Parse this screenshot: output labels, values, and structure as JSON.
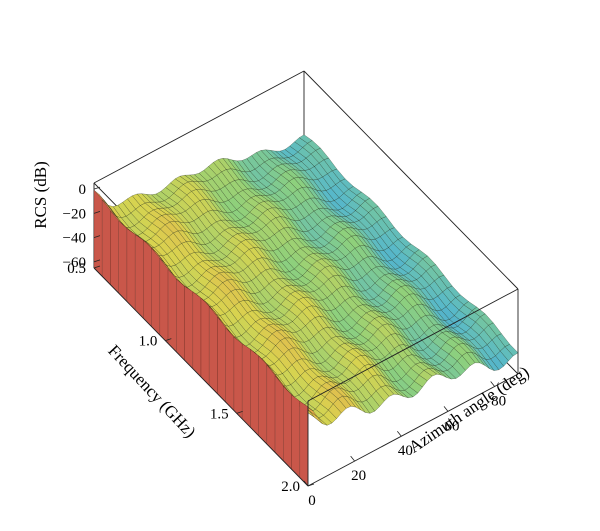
{
  "chart_data": {
    "type": "surface",
    "xlabel": "Azimuth angle (deg)",
    "ylabel": "Frequency (GHz)",
    "zlabel": "RCS (dB)",
    "x_ticks": [
      0,
      20,
      40,
      60,
      80
    ],
    "y_ticks": [
      "0.5",
      "1.0",
      "1.5",
      "2.0"
    ],
    "z_ticks": [
      "0",
      "−20",
      "−40",
      "−60"
    ],
    "xlim": [
      0,
      90
    ],
    "ylim": [
      0.5,
      2.0
    ],
    "zlim": [
      -65,
      5
    ],
    "grid": false,
    "colormap": [
      "#2f7fd0",
      "#58b9c9",
      "#8ed07c",
      "#d8d34f",
      "#e8a84d",
      "#d6564a"
    ],
    "surface_samples": [
      {
        "azimuth": 0,
        "frequency": 0.5,
        "rcs": -3
      },
      {
        "azimuth": 0,
        "frequency": 2.0,
        "rcs": -2
      },
      {
        "azimuth": 10,
        "frequency": 1.0,
        "rcs": -22
      },
      {
        "azimuth": 20,
        "frequency": 1.0,
        "rcs": -20
      },
      {
        "azimuth": 40,
        "frequency": 1.0,
        "rcs": -30
      },
      {
        "azimuth": 60,
        "frequency": 1.0,
        "rcs": -35
      },
      {
        "azimuth": 80,
        "frequency": 1.0,
        "rcs": -45
      },
      {
        "azimuth": 90,
        "frequency": 0.5,
        "rcs": -50
      },
      {
        "azimuth": 90,
        "frequency": 2.0,
        "rcs": -45
      }
    ]
  }
}
